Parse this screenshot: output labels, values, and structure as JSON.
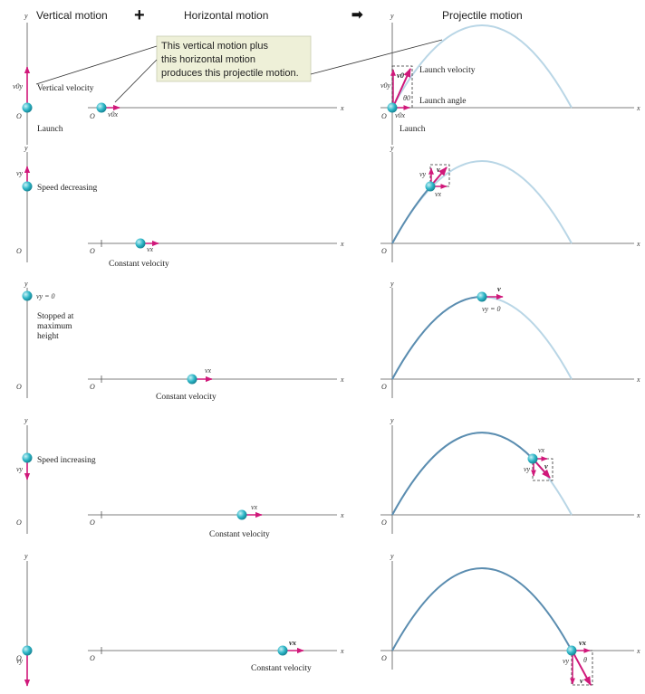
{
  "headers": {
    "vertical_title": "Vertical motion",
    "plus_symbol": "+",
    "horizontal_title": "Horizontal motion",
    "arrow_symbol": "➡",
    "projectile_title": "Projectile motion"
  },
  "callout": {
    "line1": "This vertical motion plus",
    "line2": "this horizontal motion",
    "line3": "produces this projectile motion."
  },
  "axes": {
    "x": "x",
    "y": "y",
    "origin": "O"
  },
  "vectors": {
    "v0y": "v0y",
    "v0x": "v0x",
    "v0": "v0",
    "vy": "vy",
    "vx": "vx",
    "v": "v",
    "vy_zero": "vy = 0",
    "theta0": "θ0",
    "theta": "θ"
  },
  "labels": {
    "vertical_velocity": "Vertical velocity",
    "launch": "Launch",
    "launch_velocity": "Launch velocity",
    "launch_angle": "Launch angle",
    "speed_decreasing": "Speed decreasing",
    "stopped_line1": "Stopped at",
    "stopped_line2": "maximum",
    "stopped_line3": "height",
    "speed_increasing": "Speed increasing",
    "constant_velocity": "Constant velocity"
  },
  "colors": {
    "arrow": "#d0187a",
    "curve_dark": "#5b8db0",
    "curve_light": "#b9d6e6",
    "ball": "#29b3c4",
    "callout_bg": "#eef0d8"
  }
}
